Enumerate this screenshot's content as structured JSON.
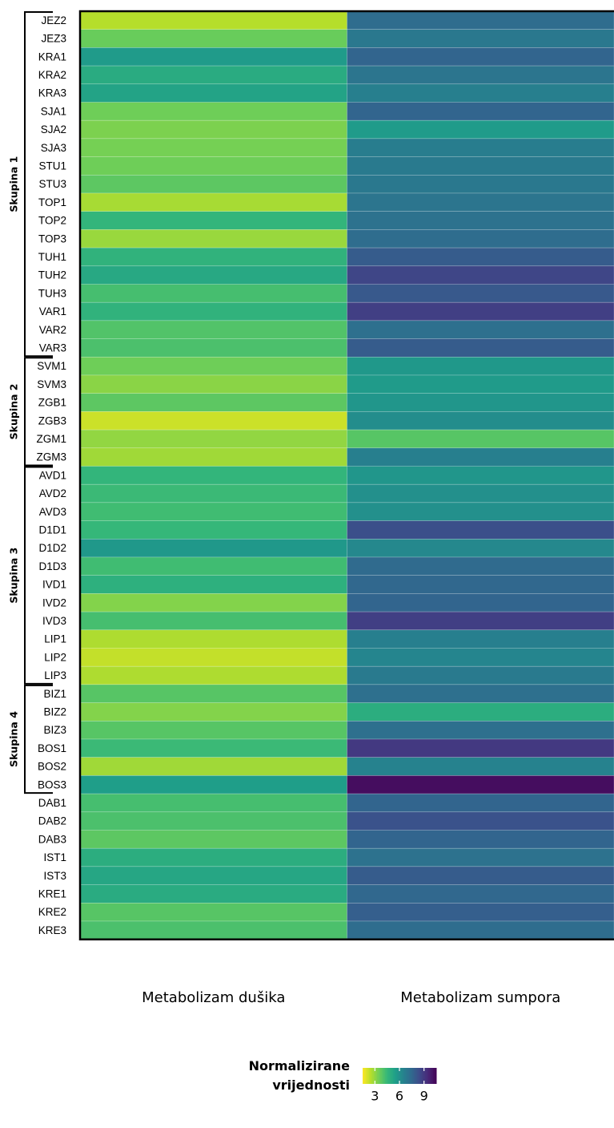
{
  "chart_data": {
    "type": "heatmap",
    "rows": [
      "JEZ2",
      "JEZ3",
      "KRA1",
      "KRA2",
      "KRA3",
      "SJA1",
      "SJA2",
      "SJA3",
      "STU1",
      "STU3",
      "TOP1",
      "TOP2",
      "TOP3",
      "TUH1",
      "TUH2",
      "TUH3",
      "VAR1",
      "VAR2",
      "VAR3",
      "SVM1",
      "SVM3",
      "ZGB1",
      "ZGB3",
      "ZGM1",
      "ZGM3",
      "AVD1",
      "AVD2",
      "AVD3",
      "D1D1",
      "D1D2",
      "D1D3",
      "IVD1",
      "IVD2",
      "IVD3",
      "LIP1",
      "LIP2",
      "LIP3",
      "BIZ1",
      "BIZ2",
      "BIZ3",
      "BOS1",
      "BOS2",
      "BOS3",
      "DAB1",
      "DAB2",
      "DAB3",
      "IST1",
      "IST3",
      "KRE1",
      "KRE2",
      "KRE3"
    ],
    "columns": [
      "Metabolizam dušika",
      "Metabolizam sumpora"
    ],
    "values": [
      [
        2.5,
        7.3
      ],
      [
        3.6,
        6.9
      ],
      [
        5.6,
        7.6
      ],
      [
        5.0,
        7.0
      ],
      [
        5.3,
        6.6
      ],
      [
        3.5,
        7.6
      ],
      [
        3.3,
        5.6
      ],
      [
        3.4,
        6.7
      ],
      [
        3.5,
        6.8
      ],
      [
        3.8,
        6.9
      ],
      [
        2.7,
        7.0
      ],
      [
        4.6,
        7.1
      ],
      [
        2.9,
        7.3
      ],
      [
        4.7,
        7.9
      ],
      [
        5.1,
        8.6
      ],
      [
        4.2,
        8.0
      ],
      [
        4.7,
        8.8
      ],
      [
        4.0,
        7.2
      ],
      [
        4.1,
        7.9
      ],
      [
        3.5,
        5.7
      ],
      [
        3.1,
        5.6
      ],
      [
        3.8,
        5.8
      ],
      [
        2.2,
        6.1
      ],
      [
        3.0,
        3.9
      ],
      [
        2.8,
        6.6
      ],
      [
        4.6,
        5.8
      ],
      [
        4.4,
        6.0
      ],
      [
        4.3,
        6.0
      ],
      [
        4.5,
        8.3
      ],
      [
        5.7,
        6.3
      ],
      [
        4.3,
        7.4
      ],
      [
        4.8,
        7.5
      ],
      [
        3.2,
        7.6
      ],
      [
        4.2,
        8.8
      ],
      [
        2.6,
        6.6
      ],
      [
        2.3,
        6.4
      ],
      [
        2.6,
        6.8
      ],
      [
        3.9,
        7.2
      ],
      [
        3.2,
        4.9
      ],
      [
        3.9,
        7.2
      ],
      [
        4.4,
        9.0
      ],
      [
        2.8,
        6.5
      ],
      [
        5.5,
        10.2
      ],
      [
        4.2,
        7.6
      ],
      [
        4.1,
        8.2
      ],
      [
        3.8,
        7.6
      ],
      [
        4.9,
        7.1
      ],
      [
        5.2,
        7.9
      ],
      [
        5.0,
        7.5
      ],
      [
        3.9,
        7.8
      ],
      [
        4.1,
        7.3
      ]
    ],
    "groups": [
      {
        "name": "Skupina 1",
        "rows": [
          0,
          18
        ]
      },
      {
        "name": "Skupina 2",
        "rows": [
          19,
          24
        ]
      },
      {
        "name": "Skupina 3",
        "rows": [
          25,
          36
        ]
      },
      {
        "name": "Skupina 4",
        "rows": [
          37,
          42
        ]
      }
    ],
    "colorbar_title": "Normalizirane vrijednosti",
    "zlim": [
      1.5,
      10.5
    ],
    "zticks": [
      3,
      6,
      9
    ],
    "colorscale": [
      "#fde725",
      "#b5de2b",
      "#6ece58",
      "#35b779",
      "#1f9e89",
      "#26828e",
      "#31688e",
      "#3e4989",
      "#482878",
      "#440154"
    ]
  }
}
